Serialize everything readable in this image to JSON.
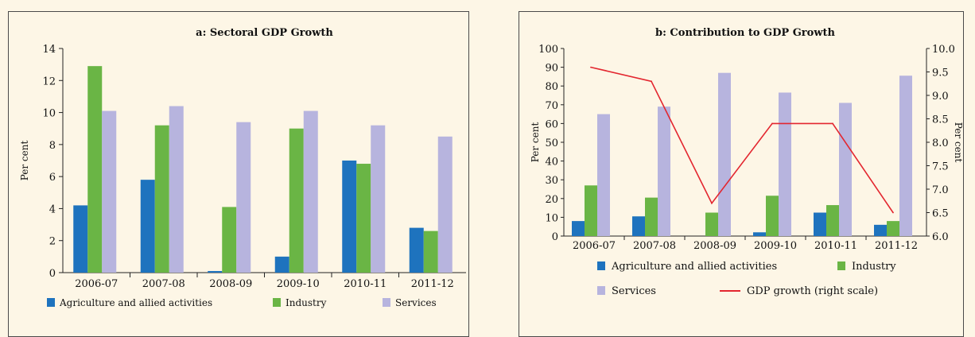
{
  "colors": {
    "agriculture": "#1e73be",
    "industry": "#6ab545",
    "services": "#b7b4de",
    "gdp_line": "#e3262f"
  },
  "chart_data": [
    {
      "type": "bar",
      "title": "a: Sectoral GDP Growth",
      "ylabel": "Per cent",
      "xlabel": "",
      "categories": [
        "2006-07",
        "2007-08",
        "2008-09",
        "2009-10",
        "2010-11",
        "2011-12"
      ],
      "ylim": [
        0,
        14
      ],
      "yticks": [
        0,
        2,
        4,
        6,
        8,
        10,
        12,
        14
      ],
      "series": [
        {
          "name": "Agriculture and allied activities",
          "color": "#1e73be",
          "values": [
            4.2,
            5.8,
            0.1,
            1.0,
            7.0,
            2.8
          ]
        },
        {
          "name": "Industry",
          "color": "#6ab545",
          "values": [
            12.9,
            9.2,
            4.1,
            9.0,
            6.8,
            2.6
          ]
        },
        {
          "name": "Services",
          "color": "#b7b4de",
          "values": [
            10.1,
            10.4,
            9.4,
            10.1,
            9.2,
            8.5
          ]
        }
      ],
      "legend": "bottom"
    },
    {
      "type": "bar",
      "title": "b:  Contribution to GDP Growth",
      "ylabel": "Per cent",
      "y2label": "Per cent",
      "xlabel": "",
      "categories": [
        "2006-07",
        "2007-08",
        "2008-09",
        "2009-10",
        "2010-11",
        "2011-12"
      ],
      "ylim": [
        0,
        100
      ],
      "yticks": [
        0,
        10,
        20,
        30,
        40,
        50,
        60,
        70,
        80,
        90,
        100
      ],
      "y2lim": [
        6.0,
        10.0
      ],
      "y2ticks": [
        "6.0",
        "6.5",
        "7.0",
        "7.5",
        "8.0",
        "8.5",
        "9.0",
        "9.5",
        "10.0"
      ],
      "series": [
        {
          "name": "Agriculture and allied activities",
          "color": "#1e73be",
          "values": [
            8,
            10.5,
            0,
            2,
            12.5,
            6
          ]
        },
        {
          "name": "Industry",
          "color": "#6ab545",
          "values": [
            27,
            20.5,
            12.5,
            21.5,
            16.5,
            8
          ]
        },
        {
          "name": "Services",
          "color": "#b7b4de",
          "values": [
            65,
            69,
            87,
            76.5,
            71,
            85.5
          ]
        }
      ],
      "line_series": {
        "name": "GDP growth  (right scale)",
        "color": "#e3262f",
        "axis": "right",
        "values": [
          9.6,
          9.3,
          6.7,
          8.4,
          8.4,
          6.5
        ]
      },
      "legend": "bottom"
    }
  ]
}
